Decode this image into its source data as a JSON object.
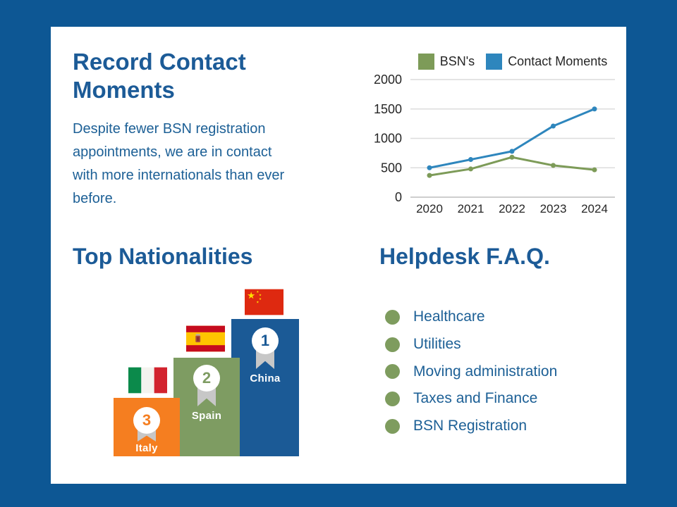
{
  "colors": {
    "frame": "#0d5794",
    "card": "#ffffff",
    "heading": "#1c5b97",
    "body_text": "#1d6096",
    "ribbon": "#c7c7c7",
    "gridline": "#dcdcdc",
    "axis_line": "#bdbdbd",
    "chart_text": "#262626"
  },
  "intro": {
    "title": "Record Contact Moments",
    "description": "Despite fewer BSN registration appointments, we are in contact with more internationals than ever before."
  },
  "chart_data": {
    "type": "line",
    "x": [
      "2020",
      "2021",
      "2022",
      "2023",
      "2024"
    ],
    "series": [
      {
        "name": "BSN's",
        "color": "#7d9b58",
        "values": [
          370,
          480,
          680,
          540,
          465
        ]
      },
      {
        "name": "Contact Moments",
        "color": "#2e86bd",
        "values": [
          500,
          640,
          780,
          1210,
          1500
        ]
      }
    ],
    "ylim": [
      0,
      2000
    ],
    "yticks": [
      0,
      500,
      1000,
      1500,
      2000
    ],
    "grid": true,
    "legend_position": "top"
  },
  "nationalities": {
    "title": "Top Nationalities",
    "podium": [
      {
        "rank": "1",
        "country": "China",
        "color": "#1b5a96"
      },
      {
        "rank": "2",
        "country": "Spain",
        "color": "#7e9c62"
      },
      {
        "rank": "3",
        "country": "Italy",
        "color": "#f57e20"
      }
    ]
  },
  "faq": {
    "title": "Helpdesk F.A.Q.",
    "bullet_color": "#7e9c5e",
    "items": [
      "Healthcare",
      "Utilities",
      "Moving administration",
      "Taxes and Finance",
      "BSN Registration"
    ]
  }
}
